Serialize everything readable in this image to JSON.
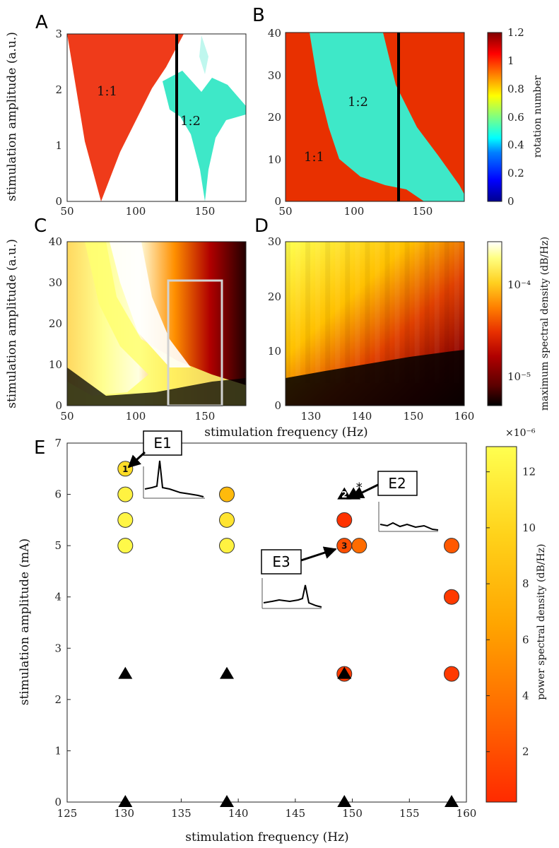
{
  "panels": {
    "A": "A",
    "B": "B",
    "C": "C",
    "D": "D",
    "E": "E"
  },
  "colors": {
    "lock_1_1": "#ef3b1a",
    "lock_1_2": "#3ee8c8",
    "rotation_colormap": [
      "#00008f",
      "#0000ff",
      "#0080ff",
      "#00ffff",
      "#80ff80",
      "#ffff00",
      "#ff8000",
      "#ff0000",
      "#800000"
    ],
    "psd_colormap": [
      "#000000",
      "#5a0000",
      "#b00000",
      "#e83000",
      "#ff8000",
      "#ffd020",
      "#ffff80",
      "#ffffff"
    ],
    "e_colormap": [
      "#ff2a00",
      "#ff6a00",
      "#ffa500",
      "#ffd21a",
      "#ffff50"
    ],
    "frame_rect": "#d2d2d2"
  },
  "chart_data": [
    {
      "panel": "A",
      "type": "heatmap",
      "x_ticks": [
        "50",
        "100",
        "150"
      ],
      "y_ticks": [
        "0",
        "1",
        "2",
        "3"
      ],
      "xlim": [
        50,
        180
      ],
      "ylim": [
        0,
        3
      ],
      "ylabel": "stimulation amplitude (a.u.)",
      "regions": [
        "1:1",
        "1:2"
      ],
      "marker_line_x": 130
    },
    {
      "panel": "B",
      "type": "heatmap",
      "x_ticks": [
        "50",
        "100",
        "150"
      ],
      "y_ticks": [
        "0",
        "10",
        "20",
        "30",
        "40"
      ],
      "xlim": [
        50,
        180
      ],
      "ylim": [
        0,
        40
      ],
      "regions": [
        "1:1",
        "1:2"
      ],
      "marker_line_x": 132,
      "colorbar": {
        "label": "rotation number",
        "ticks": [
          "0",
          "0.2",
          "0.4",
          "0.6",
          "0.8",
          "1",
          "1.2"
        ],
        "range": [
          0,
          1.2
        ]
      }
    },
    {
      "panel": "C",
      "type": "heatmap",
      "x_ticks": [
        "50",
        "100",
        "150"
      ],
      "y_ticks": [
        "0",
        "10",
        "20",
        "30",
        "40"
      ],
      "xlim": [
        50,
        180
      ],
      "ylim": [
        0,
        40
      ],
      "ylabel": "stimulation amplitude (a.u.)",
      "highlight_box": {
        "x": [
          122,
          162
        ],
        "y": [
          0,
          31
        ]
      }
    },
    {
      "panel": "D",
      "type": "heatmap",
      "x_ticks": [
        "130",
        "140",
        "150",
        "160"
      ],
      "y_ticks": [
        "0",
        "10",
        "20",
        "30"
      ],
      "xlim": [
        125,
        160
      ],
      "ylim": [
        0,
        30
      ],
      "xlabel": "stimulation frequency (Hz)",
      "colorbar": {
        "label": "maximum spectral density (dB/Hz)",
        "ticks": [
          "10⁻⁴",
          "10⁻⁵"
        ],
        "scale": "log"
      }
    },
    {
      "panel": "E",
      "type": "scatter",
      "xlabel": "stimulation frequency (Hz)",
      "ylabel": "stimulation amplitude (mA)",
      "xlim": [
        125,
        160
      ],
      "ylim": [
        0,
        7
      ],
      "x_ticks": [
        "125",
        "130",
        "135",
        "140",
        "145",
        "150",
        "155",
        "160"
      ],
      "y_ticks": [
        "0",
        "1",
        "2",
        "3",
        "4",
        "5",
        "6",
        "7"
      ],
      "circles": [
        {
          "x": 130.1,
          "y": 6.5,
          "psd": 10.5
        },
        {
          "x": 130.1,
          "y": 6.0,
          "psd": 12.0
        },
        {
          "x": 130.1,
          "y": 5.5,
          "psd": 12.2
        },
        {
          "x": 130.1,
          "y": 5.0,
          "psd": 12.5
        },
        {
          "x": 139.0,
          "y": 6.0,
          "psd": 8.0
        },
        {
          "x": 139.0,
          "y": 5.5,
          "psd": 11.0
        },
        {
          "x": 139.0,
          "y": 5.0,
          "psd": 12.0
        },
        {
          "x": 149.3,
          "y": 5.5,
          "psd": 0.6
        },
        {
          "x": 149.3,
          "y": 5.0,
          "psd": 2.0
        },
        {
          "x": 150.6,
          "y": 5.0,
          "psd": 3.5
        },
        {
          "x": 149.3,
          "y": 2.5,
          "psd": 1.0
        },
        {
          "x": 158.7,
          "y": 5.0,
          "psd": 2.5
        },
        {
          "x": 158.7,
          "y": 4.0,
          "psd": 1.0
        },
        {
          "x": 158.7,
          "y": 2.5,
          "psd": 1.0
        }
      ],
      "triangles": [
        {
          "x": 130.1,
          "y": 2.5
        },
        {
          "x": 139.0,
          "y": 2.5
        },
        {
          "x": 149.3,
          "y": 2.5
        },
        {
          "x": 130.1,
          "y": 0.0
        },
        {
          "x": 139.0,
          "y": 0.0
        },
        {
          "x": 149.3,
          "y": 0.0
        },
        {
          "x": 158.7,
          "y": 0.0
        },
        {
          "x": 149.3,
          "y": 6.0
        },
        {
          "x": 150.1,
          "y": 6.0
        }
      ],
      "numbered_points": [
        {
          "label": "1",
          "x": 130.1,
          "y": 6.5
        },
        {
          "label": "2",
          "x": 149.3,
          "y": 6.0
        },
        {
          "label": "3",
          "x": 149.3,
          "y": 5.0
        }
      ],
      "asterisk": {
        "text": "*",
        "x": 150.6,
        "y": 6.1
      },
      "callouts": [
        {
          "label": "E1",
          "x": 130.1,
          "y": 6.5
        },
        {
          "label": "E2",
          "x": 150.1,
          "y": 6.0
        },
        {
          "label": "E3",
          "x": 149.3,
          "y": 5.0
        }
      ],
      "colorbar": {
        "label": "power spectral density (dB/Hz)",
        "exponent": "×10⁻⁶",
        "ticks": [
          "2",
          "4",
          "6",
          "8",
          "10",
          "12"
        ],
        "range": [
          0.2,
          12.9
        ]
      }
    }
  ]
}
